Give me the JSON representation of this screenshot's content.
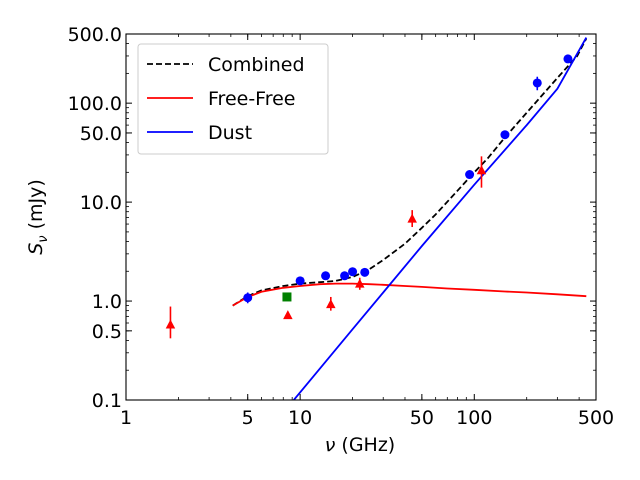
{
  "chart_data": {
    "type": "scatter",
    "xlabel_symbol": "ν",
    "xlabel_unit": " (GHz)",
    "ylabel_symbol": "S",
    "ylabel_sub": "ν",
    "ylabel_unit": " (mJy)",
    "xscale": "log",
    "yscale": "log",
    "xlim": [
      1,
      500
    ],
    "ylim": [
      0.1,
      500
    ],
    "x_ticks": [
      {
        "value": 1,
        "label": "1"
      },
      {
        "value": 5,
        "label": "5"
      },
      {
        "value": 10,
        "label": "10"
      },
      {
        "value": 50,
        "label": "50"
      },
      {
        "value": 100,
        "label": "100"
      },
      {
        "value": 500,
        "label": "500"
      }
    ],
    "y_ticks": [
      {
        "value": 0.1,
        "label": "0.1"
      },
      {
        "value": 0.5,
        "label": "0.5"
      },
      {
        "value": 1,
        "label": "1.0"
      },
      {
        "value": 10,
        "label": "10.0"
      },
      {
        "value": 50,
        "label": "50.0"
      },
      {
        "value": 100,
        "label": "100.0"
      },
      {
        "value": 500,
        "label": "500.0"
      }
    ],
    "grid": false,
    "legend_position": "top-left",
    "legend": [
      {
        "label": "Combined",
        "color": "#000000",
        "style": "dashed"
      },
      {
        "label": "Free-Free",
        "color": "#ff0000",
        "style": "solid"
      },
      {
        "label": "Dust",
        "color": "#0000ff",
        "style": "solid"
      }
    ],
    "lines": [
      {
        "name": "Combined",
        "color": "#000000",
        "style": "dashed",
        "points": [
          [
            4.1,
            0.9
          ],
          [
            5,
            1.12
          ],
          [
            6,
            1.28
          ],
          [
            8,
            1.42
          ],
          [
            10,
            1.5
          ],
          [
            13,
            1.55
          ],
          [
            16,
            1.6
          ],
          [
            20,
            1.75
          ],
          [
            25,
            2.1
          ],
          [
            30,
            2.6
          ],
          [
            40,
            3.8
          ],
          [
            50,
            5.5
          ],
          [
            60,
            7.5
          ],
          [
            80,
            13
          ],
          [
            100,
            20
          ],
          [
            120,
            28
          ],
          [
            150,
            45
          ],
          [
            200,
            80
          ],
          [
            300,
            180
          ],
          [
            390,
            300
          ],
          [
            440,
            450
          ]
        ]
      },
      {
        "name": "Free-Free",
        "color": "#ff0000",
        "style": "solid",
        "points": [
          [
            4.1,
            0.9
          ],
          [
            5,
            1.1
          ],
          [
            6,
            1.24
          ],
          [
            8,
            1.36
          ],
          [
            10,
            1.42
          ],
          [
            13,
            1.48
          ],
          [
            16,
            1.5
          ],
          [
            20,
            1.5
          ],
          [
            25,
            1.48
          ],
          [
            30,
            1.46
          ],
          [
            40,
            1.42
          ],
          [
            50,
            1.39
          ],
          [
            70,
            1.34
          ],
          [
            100,
            1.3
          ],
          [
            150,
            1.25
          ],
          [
            200,
            1.22
          ],
          [
            300,
            1.17
          ],
          [
            440,
            1.12
          ]
        ]
      },
      {
        "name": "Dust",
        "color": "#0000ff",
        "style": "solid",
        "points": [
          [
            9.2,
            0.1
          ],
          [
            20,
            0.52
          ],
          [
            30,
            1.22
          ],
          [
            50,
            3.6
          ],
          [
            100,
            15
          ],
          [
            200,
            60
          ],
          [
            300,
            140
          ],
          [
            440,
            460
          ]
        ]
      }
    ],
    "series": [
      {
        "marker": "circle",
        "color": "#0000ff",
        "points": [
          {
            "x": 5,
            "y": 1.08,
            "err_lo": 0.95,
            "err_hi": 1.22
          },
          {
            "x": 10,
            "y": 1.6
          },
          {
            "x": 14,
            "y": 1.8
          },
          {
            "x": 18,
            "y": 1.8
          },
          {
            "x": 20,
            "y": 1.98
          },
          {
            "x": 23.5,
            "y": 1.95
          },
          {
            "x": 94,
            "y": 19
          },
          {
            "x": 150,
            "y": 48
          },
          {
            "x": 230,
            "y": 160,
            "err_lo": 135,
            "err_hi": 185
          },
          {
            "x": 345,
            "y": 280
          }
        ]
      },
      {
        "marker": "triangle",
        "color": "#ff0000",
        "points": [
          {
            "x": 1.8,
            "y": 0.58,
            "err_lo": 0.42,
            "err_hi": 0.88
          },
          {
            "x": 8.5,
            "y": 0.72
          },
          {
            "x": 15,
            "y": 0.93,
            "err_lo": 0.8,
            "err_hi": 1.1
          },
          {
            "x": 22,
            "y": 1.5,
            "err_lo": 1.3,
            "err_hi": 1.72
          },
          {
            "x": 44,
            "y": 6.8,
            "err_lo": 5.6,
            "err_hi": 8.3
          },
          {
            "x": 110,
            "y": 21,
            "err_lo": 14,
            "err_hi": 29
          }
        ]
      },
      {
        "marker": "square",
        "color": "#008000",
        "points": [
          {
            "x": 8.4,
            "y": 1.1
          }
        ]
      }
    ]
  }
}
